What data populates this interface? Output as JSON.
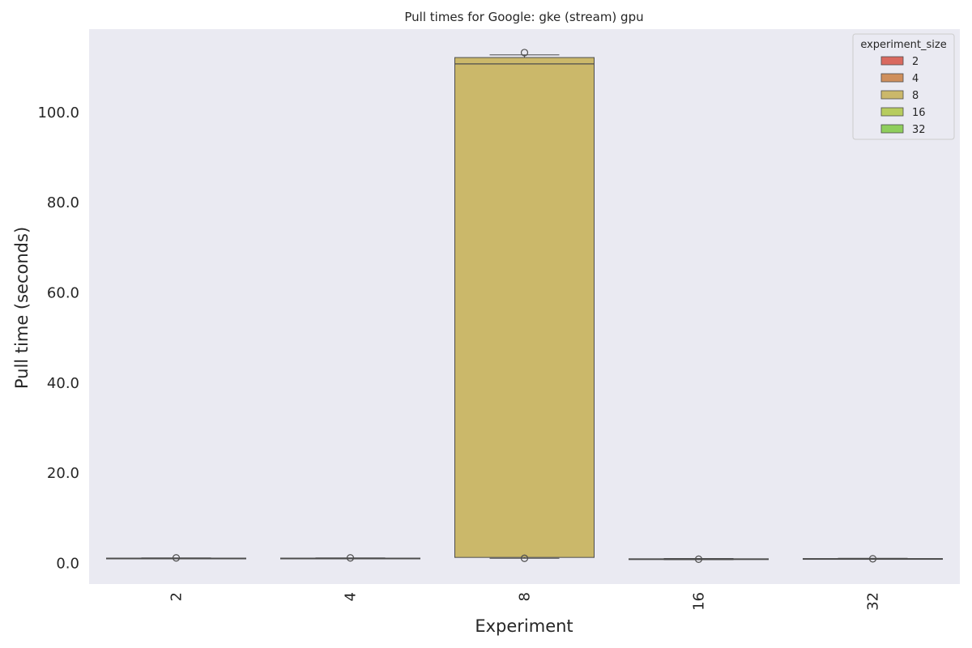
{
  "chart_data": {
    "type": "box",
    "title": "Pull times for Google: gke (stream) gpu",
    "xlabel": "Experiment",
    "ylabel": "Pull time (seconds)",
    "ylim": [
      -4.6,
      118.5
    ],
    "yticks": [
      0.0,
      20.0,
      40.0,
      60.0,
      80.0,
      100.0
    ],
    "ytick_labels": [
      "0.0",
      "20.0",
      "40.0",
      "60.0",
      "80.0",
      "100.0"
    ],
    "categories": [
      "2",
      "4",
      "8",
      "16",
      "32"
    ],
    "grid": false,
    "legend": {
      "title": "experiment_size",
      "placement": "top-right",
      "entries": [
        "2",
        "4",
        "8",
        "16",
        "32"
      ]
    },
    "colors": [
      "#d9695f",
      "#cf8f5c",
      "#cbb86a",
      "#b7cc5e",
      "#8fce5d"
    ],
    "background": "#eaeaf2",
    "boxes": [
      {
        "category": "2",
        "color": "#d9695f",
        "q1": 1.05,
        "median": 1.1,
        "q3": 1.15,
        "whisker_low": 1.0,
        "whisker_high": 1.2,
        "outliers": [
          1.2
        ]
      },
      {
        "category": "4",
        "color": "#cf8f5c",
        "q1": 1.05,
        "median": 1.1,
        "q3": 1.15,
        "whisker_low": 1.0,
        "whisker_high": 1.2,
        "outliers": [
          1.2
        ]
      },
      {
        "category": "8",
        "color": "#cbb86a",
        "q1": 1.3,
        "median": 110.8,
        "q3": 112.2,
        "whisker_low": 1.1,
        "whisker_high": 112.8,
        "outliers": [
          113.3,
          1.1
        ]
      },
      {
        "category": "16",
        "color": "#b7cc5e",
        "q1": 0.85,
        "median": 0.9,
        "q3": 1.0,
        "whisker_low": 0.8,
        "whisker_high": 1.05,
        "outliers": [
          0.9
        ]
      },
      {
        "category": "32",
        "color": "#8fce5d",
        "q1": 0.95,
        "median": 1.0,
        "q3": 1.05,
        "whisker_low": 0.9,
        "whisker_high": 1.1,
        "outliers": [
          1.0
        ]
      }
    ]
  }
}
